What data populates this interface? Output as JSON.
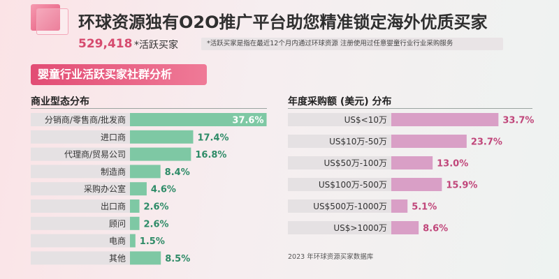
{
  "header": {
    "headline": "环球资源独有O2O推广平台助您精准锁定海外优质买家",
    "count": "529,418",
    "count_suffix": "*活跃买家",
    "note": "*活跃买家是指在最近12个月内通过环球资源   注册使用过任意婴童行业行业采购服务"
  },
  "section_title": "婴童行业活跃买家社群分析",
  "footnote": "2023 年环球资源买家数据库",
  "colors": {
    "business_bar": "#7ec8a4",
    "business_label": "#2e8b67",
    "purchase_bar": "#d99fc6",
    "purchase_label": "#c0467a",
    "label_track": "#e5e1e3"
  },
  "chart_data": [
    {
      "type": "bar",
      "orientation": "horizontal",
      "title": "商业型态分布",
      "categories": [
        "分销商/零售商/批发商",
        "进口商",
        "代理商/贸易公司",
        "制造商",
        "采购办公室",
        "出口商",
        "顾问",
        "电商",
        "其他"
      ],
      "values": [
        37.6,
        17.4,
        16.8,
        8.4,
        4.6,
        2.6,
        2.6,
        1.5,
        8.5
      ],
      "value_labels": [
        "37.6%",
        "17.4%",
        "16.8%",
        "8.4%",
        "4.6%",
        "2.6%",
        "2.6%",
        "1.5%",
        "8.5%"
      ],
      "unit": "%"
    },
    {
      "type": "bar",
      "orientation": "horizontal",
      "title": "年度采购额 (美元) 分布",
      "categories": [
        "US$<10万",
        "US$10万-50万",
        "US$50万-100万",
        "US$100万-500万",
        "US$500万-1000万",
        "US$>1000万"
      ],
      "values": [
        33.7,
        23.7,
        13.0,
        15.9,
        5.1,
        8.6
      ],
      "value_labels": [
        "33.7%",
        "23.7%",
        "13.0%",
        "15.9%",
        "5.1%",
        "8.6%"
      ],
      "unit": "%"
    }
  ]
}
